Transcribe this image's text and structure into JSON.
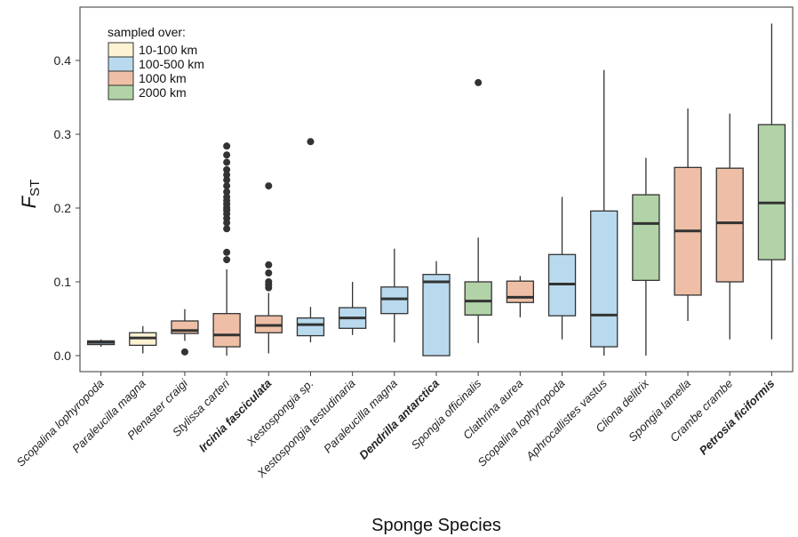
{
  "chart_data": {
    "type": "box",
    "xlabel": "Sponge Species",
    "ylabel_main": "F",
    "ylabel_sub": "ST",
    "ylim": [
      -0.02,
      0.47
    ],
    "yticks": [
      "0.0",
      "0.1",
      "0.2",
      "0.3",
      "0.4"
    ],
    "grid": false,
    "legend": {
      "title": "sampled over:",
      "placement": "top-left",
      "items": [
        {
          "label": "10-100 km",
          "color": "#fdf3d3"
        },
        {
          "label": "100-500 km",
          "color": "#b9d9ee"
        },
        {
          "label": "1000 km",
          "color": "#eebfa6"
        },
        {
          "label": "2000 km",
          "color": "#b1d3a7"
        }
      ]
    },
    "boxes": [
      {
        "name": "Scopalina lophyropoda",
        "bold": false,
        "range": "100-500 km",
        "color": "#b9d9ee",
        "whisker_low": 0.012,
        "q1": 0.015,
        "median": 0.018,
        "q3": 0.02,
        "whisker_high": 0.022,
        "outliers": []
      },
      {
        "name": "Paraleucilla magna",
        "bold": false,
        "range": "10-100 km",
        "color": "#fdf3d3",
        "whisker_low": 0.003,
        "q1": 0.014,
        "median": 0.024,
        "q3": 0.031,
        "whisker_high": 0.04,
        "outliers": []
      },
      {
        "name": "Plenaster craigi",
        "bold": false,
        "range": "1000 km",
        "color": "#eebfa6",
        "whisker_low": 0.02,
        "q1": 0.03,
        "median": 0.034,
        "q3": 0.047,
        "whisker_high": 0.063,
        "outliers": [
          0.005
        ]
      },
      {
        "name": "Stylissa carteri",
        "bold": false,
        "range": "1000 km",
        "color": "#eebfa6",
        "whisker_low": 0.0,
        "q1": 0.012,
        "median": 0.028,
        "q3": 0.057,
        "whisker_high": 0.117,
        "outliers": [
          0.13,
          0.14,
          0.172,
          0.18,
          0.186,
          0.192,
          0.197,
          0.2,
          0.205,
          0.21,
          0.215,
          0.222,
          0.23,
          0.238,
          0.245,
          0.252,
          0.262,
          0.272,
          0.284
        ]
      },
      {
        "name": "Ircinia fasciculata",
        "bold": true,
        "range": "1000 km",
        "color": "#eebfa6",
        "whisker_low": 0.003,
        "q1": 0.031,
        "median": 0.041,
        "q3": 0.054,
        "whisker_high": 0.085,
        "outliers": [
          0.092,
          0.096,
          0.1,
          0.112,
          0.123,
          0.23
        ]
      },
      {
        "name": "Xestospongia sp.",
        "bold": false,
        "range": "100-500 km",
        "color": "#b9d9ee",
        "whisker_low": 0.018,
        "q1": 0.027,
        "median": 0.042,
        "q3": 0.051,
        "whisker_high": 0.066,
        "outliers": [
          0.29
        ]
      },
      {
        "name": "Xestospongia testudinaria",
        "bold": false,
        "range": "100-500 km",
        "color": "#b9d9ee",
        "whisker_low": 0.028,
        "q1": 0.037,
        "median": 0.051,
        "q3": 0.065,
        "whisker_high": 0.1,
        "outliers": []
      },
      {
        "name": "Paraleucilla magna",
        "bold": false,
        "range": "100-500 km",
        "color": "#b9d9ee",
        "whisker_low": 0.018,
        "q1": 0.057,
        "median": 0.077,
        "q3": 0.093,
        "whisker_high": 0.145,
        "outliers": []
      },
      {
        "name": "Dendrilla antarctica",
        "bold": true,
        "range": "100-500 km",
        "color": "#b9d9ee",
        "whisker_low": 0.0,
        "q1": 0.0,
        "median": 0.1,
        "q3": 0.11,
        "whisker_high": 0.128,
        "outliers": []
      },
      {
        "name": "Spongia officinalis",
        "bold": false,
        "range": "2000 km",
        "color": "#b1d3a7",
        "whisker_low": 0.017,
        "q1": 0.055,
        "median": 0.074,
        "q3": 0.1,
        "whisker_high": 0.16,
        "outliers": [
          0.37
        ]
      },
      {
        "name": "Clathrina aurea",
        "bold": false,
        "range": "1000 km",
        "color": "#eebfa6",
        "whisker_low": 0.052,
        "q1": 0.072,
        "median": 0.079,
        "q3": 0.101,
        "whisker_high": 0.108,
        "outliers": []
      },
      {
        "name": "Scopalina lophyropoda",
        "bold": false,
        "range": "100-500 km",
        "color": "#b9d9ee",
        "whisker_low": 0.022,
        "q1": 0.054,
        "median": 0.097,
        "q3": 0.137,
        "whisker_high": 0.215,
        "outliers": []
      },
      {
        "name": "Aphrocallistes vastus",
        "bold": false,
        "range": "100-500 km",
        "color": "#b9d9ee",
        "whisker_low": 0.0,
        "q1": 0.012,
        "median": 0.055,
        "q3": 0.196,
        "whisker_high": 0.387,
        "outliers": []
      },
      {
        "name": "Cliona delitrix",
        "bold": false,
        "range": "2000 km",
        "color": "#b1d3a7",
        "whisker_low": 0.0,
        "q1": 0.102,
        "median": 0.179,
        "q3": 0.218,
        "whisker_high": 0.268,
        "outliers": []
      },
      {
        "name": "Spongia lamella",
        "bold": false,
        "range": "1000 km",
        "color": "#eebfa6",
        "whisker_low": 0.047,
        "q1": 0.082,
        "median": 0.169,
        "q3": 0.255,
        "whisker_high": 0.335,
        "outliers": []
      },
      {
        "name": "Crambe crambe",
        "bold": false,
        "range": "1000 km",
        "color": "#eebfa6",
        "whisker_low": 0.022,
        "q1": 0.1,
        "median": 0.18,
        "q3": 0.254,
        "whisker_high": 0.328,
        "outliers": []
      },
      {
        "name": "Petrosia ficiformis",
        "bold": true,
        "range": "2000 km",
        "color": "#b1d3a7",
        "whisker_low": 0.022,
        "q1": 0.13,
        "median": 0.207,
        "q3": 0.313,
        "whisker_high": 0.45,
        "outliers": []
      }
    ]
  }
}
